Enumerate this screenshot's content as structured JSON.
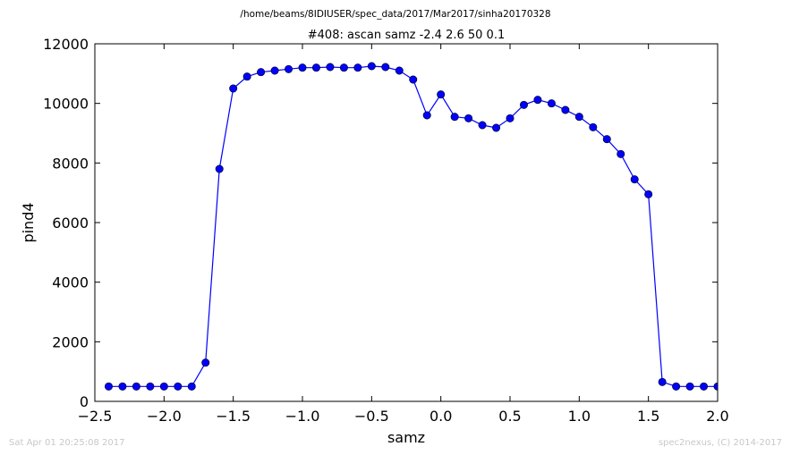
{
  "chart_data": {
    "type": "line",
    "suptitle": "/home/beams/8IDIUSER/spec_data/2017/Mar2017/sinha20170328",
    "title": "#408: ascan  samz -2.4 2.6  50 0.1",
    "xlabel": "samz",
    "ylabel": "pind4",
    "xlim": [
      -2.5,
      2.0
    ],
    "ylim": [
      0,
      12000
    ],
    "xticks": [
      -2.5,
      -2.0,
      -1.5,
      -1.0,
      -0.5,
      0.0,
      0.5,
      1.0,
      1.5,
      2.0
    ],
    "xtick_labels": [
      "−2.5",
      "−2.0",
      "−1.5",
      "−1.0",
      "−0.5",
      "0.0",
      "0.5",
      "1.0",
      "1.5",
      "2.0"
    ],
    "yticks": [
      0,
      2000,
      4000,
      6000,
      8000,
      10000,
      12000
    ],
    "ytick_labels": [
      "0",
      "2000",
      "4000",
      "6000",
      "8000",
      "10000",
      "12000"
    ],
    "grid": false,
    "series": [
      {
        "color": "#0000ff",
        "marker": "circle",
        "x": [
          -2.4,
          -2.3,
          -2.2,
          -2.1,
          -2.0,
          -1.9,
          -1.8,
          -1.7,
          -1.6,
          -1.5,
          -1.4,
          -1.3,
          -1.2,
          -1.1,
          -1.0,
          -0.9,
          -0.8,
          -0.7,
          -0.6,
          -0.5,
          -0.4,
          -0.3,
          -0.2,
          -0.1,
          0.0,
          0.1,
          0.2,
          0.3,
          0.4,
          0.5,
          0.6,
          0.7,
          0.8,
          0.9,
          1.0,
          1.1,
          1.2,
          1.3,
          1.4,
          1.5,
          1.6,
          1.7,
          1.8,
          1.9,
          2.0
        ],
        "y": [
          500,
          500,
          500,
          500,
          500,
          500,
          500,
          1300,
          7800,
          10500,
          10900,
          11050,
          11100,
          11150,
          11200,
          11200,
          11220,
          11200,
          11200,
          11250,
          11220,
          11100,
          10800,
          9600,
          10300,
          9550,
          9500,
          9270,
          9180,
          9500,
          9950,
          10120,
          10000,
          9780,
          9550,
          9200,
          8800,
          8300,
          7450,
          6950,
          650,
          500,
          500,
          500,
          500
        ]
      }
    ]
  },
  "footer": {
    "timestamp": "Sat Apr 01 20:25:08 2017",
    "credit": "spec2nexus, (C) 2014-2017"
  }
}
